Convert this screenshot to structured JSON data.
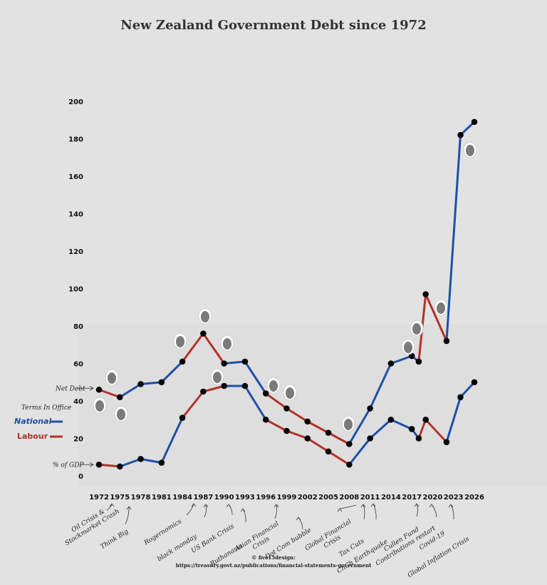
{
  "chart_data": {
    "type": "line",
    "title": "New Zealand Government Debt since 1972",
    "x_ticks": [
      "1972",
      "1975",
      "1978",
      "1981",
      "1984",
      "1987",
      "1990",
      "1993",
      "1996",
      "1999",
      "2002",
      "2005",
      "2008",
      "2011",
      "2014",
      "2017",
      "2020",
      "2023",
      "2026"
    ],
    "y_ticks": [
      "0",
      "20",
      "40",
      "60",
      "80",
      "100",
      "120",
      "140",
      "160",
      "180",
      "200"
    ],
    "ylim": [
      -8,
      200
    ],
    "xlim": [
      1972,
      2026
    ],
    "series": [
      {
        "name": "Net Debt",
        "points": [
          {
            "x": 1972,
            "y": 46,
            "party": "Labour"
          },
          {
            "x": 1975,
            "y": 42,
            "party": "Labour"
          },
          {
            "x": 1978,
            "y": 49,
            "party": "National"
          },
          {
            "x": 1981,
            "y": 50,
            "party": "National"
          },
          {
            "x": 1984,
            "y": 61,
            "party": "National"
          },
          {
            "x": 1987,
            "y": 76,
            "party": "Labour"
          },
          {
            "x": 1990,
            "y": 60,
            "party": "Labour"
          },
          {
            "x": 1993,
            "y": 61,
            "party": "National"
          },
          {
            "x": 1996,
            "y": 44,
            "party": "National"
          },
          {
            "x": 1999,
            "y": 36,
            "party": "Labour"
          },
          {
            "x": 2002,
            "y": 29,
            "party": "Labour"
          },
          {
            "x": 2005,
            "y": 23,
            "party": "Labour"
          },
          {
            "x": 2008,
            "y": 17,
            "party": "Labour"
          },
          {
            "x": 2011,
            "y": 36,
            "party": "National"
          },
          {
            "x": 2014,
            "y": 60,
            "party": "National"
          },
          {
            "x": 2017,
            "y": 64,
            "party": "National"
          },
          {
            "x": 2018,
            "y": 61,
            "party": "National"
          },
          {
            "x": 2019,
            "y": 97,
            "party": "Labour"
          },
          {
            "x": 2022,
            "y": 72,
            "party": "Labour"
          },
          {
            "x": 2024,
            "y": 182,
            "party": "National"
          },
          {
            "x": 2026,
            "y": 189,
            "party": "National"
          }
        ]
      },
      {
        "name": "% of GDP",
        "points": [
          {
            "x": 1972,
            "y": 6,
            "party": "Labour"
          },
          {
            "x": 1975,
            "y": 5,
            "party": "Labour"
          },
          {
            "x": 1978,
            "y": 9,
            "party": "National"
          },
          {
            "x": 1981,
            "y": 7,
            "party": "National"
          },
          {
            "x": 1984,
            "y": 31,
            "party": "National"
          },
          {
            "x": 1987,
            "y": 45,
            "party": "Labour"
          },
          {
            "x": 1990,
            "y": 48,
            "party": "Labour"
          },
          {
            "x": 1993,
            "y": 48,
            "party": "National"
          },
          {
            "x": 1996,
            "y": 30,
            "party": "National"
          },
          {
            "x": 1999,
            "y": 24,
            "party": "Labour"
          },
          {
            "x": 2002,
            "y": 20,
            "party": "Labour"
          },
          {
            "x": 2005,
            "y": 13,
            "party": "Labour"
          },
          {
            "x": 2008,
            "y": 6,
            "party": "Labour"
          },
          {
            "x": 2011,
            "y": 20,
            "party": "National"
          },
          {
            "x": 2014,
            "y": 30,
            "party": "National"
          },
          {
            "x": 2017,
            "y": 25,
            "party": "National"
          },
          {
            "x": 2018,
            "y": 20,
            "party": "National"
          },
          {
            "x": 2019,
            "y": 30,
            "party": "Labour"
          },
          {
            "x": 2022,
            "y": 18,
            "party": "Labour"
          },
          {
            "x": 2024,
            "y": 42,
            "party": "National"
          },
          {
            "x": 2026,
            "y": 50,
            "party": "National"
          }
        ]
      }
    ],
    "legend": {
      "title": "Terms In Office",
      "position": "left",
      "entries": [
        {
          "label": "National",
          "color": "#1f4fa8"
        },
        {
          "label": "Labour",
          "color": "#b3312a"
        }
      ]
    },
    "series_labels": {
      "net_debt": "Net Debt",
      "gdp": "% of GDP"
    },
    "annotations": [
      {
        "lines": [
          "Oil Crisis &",
          "Stockmarket Crash"
        ]
      },
      {
        "lines": [
          "Think Big"
        ]
      },
      {
        "lines": [
          "Rogernomics"
        ]
      },
      {
        "lines": [
          "black monday"
        ]
      },
      {
        "lines": [
          "US Bank Crisis"
        ]
      },
      {
        "lines": [
          "Ruthanasia"
        ]
      },
      {
        "lines": [
          "Asian Financial",
          "Crisis"
        ]
      },
      {
        "lines": [
          "Dot Com bubble"
        ]
      },
      {
        "lines": [
          "Global Financial",
          "Crisis"
        ]
      },
      {
        "lines": [
          "Tax Cuts"
        ]
      },
      {
        "lines": [
          "ChCh Earthquake"
        ]
      },
      {
        "lines": [
          "Cullen Fund",
          "Contributions restart"
        ]
      },
      {
        "lines": [
          "Covid-19"
        ]
      },
      {
        "lines": [
          "Global Inflation Crisis"
        ]
      }
    ],
    "colors": {
      "national": "#1f4fa8",
      "labour": "#b3312a",
      "marker": "#000000"
    },
    "grid": false
  },
  "credit": {
    "line1": "© five15design:",
    "line2": "https://treasury.govt.nz/publications/financial-statements-government"
  }
}
